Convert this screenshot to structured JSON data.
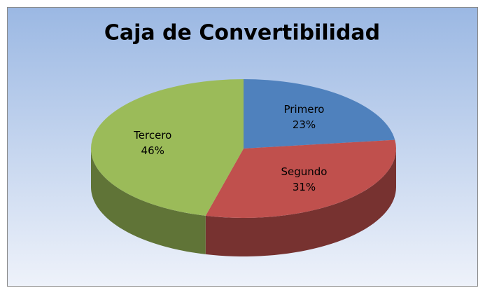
{
  "chart_data": {
    "type": "pie3d",
    "title": "Caja de Convertibilidad",
    "categories": [
      "Primero",
      "Segundo",
      "Tercero"
    ],
    "values": [
      23,
      31,
      46
    ],
    "value_labels": [
      "23%",
      "31%",
      "46%"
    ],
    "colors": [
      "#4f81bd",
      "#c0504d",
      "#9bbb59"
    ]
  }
}
